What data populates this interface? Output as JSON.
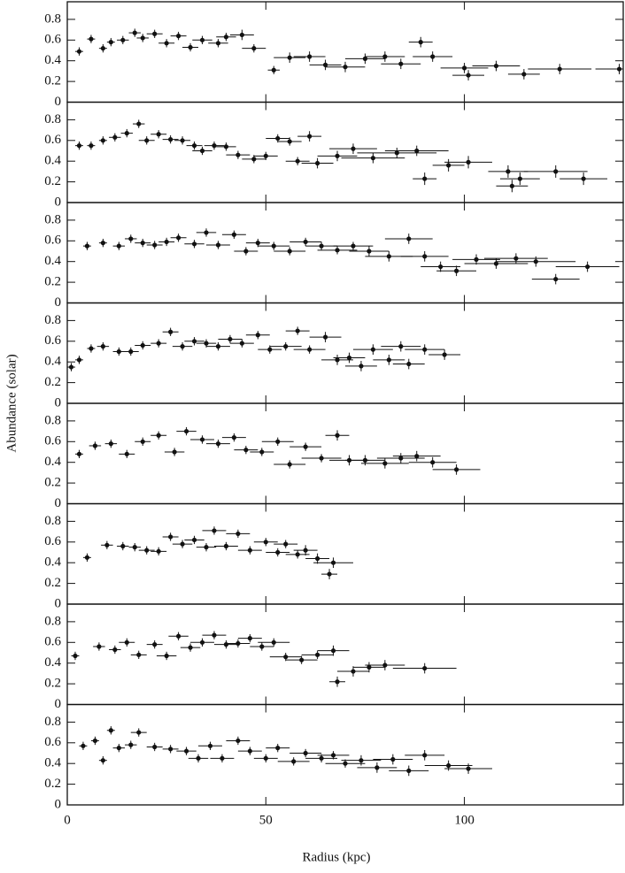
{
  "chart_data": [
    {
      "type": "scatter",
      "color": "#111111",
      "xlim": [
        0,
        140
      ],
      "ylim": [
        0,
        0.97
      ],
      "xticks": [
        0,
        50,
        100
      ],
      "yticks": [
        0,
        0.2,
        0.4,
        0.6,
        0.8
      ],
      "x": [
        3,
        6,
        9,
        11,
        14,
        17,
        19,
        22,
        25,
        28,
        31,
        34,
        38,
        40,
        44,
        47,
        52,
        56,
        61,
        65,
        70,
        75,
        80,
        84,
        89,
        92,
        100,
        101,
        108,
        115,
        124,
        139
      ],
      "values": [
        0.49,
        0.61,
        0.52,
        0.58,
        0.6,
        0.67,
        0.62,
        0.66,
        0.57,
        0.64,
        0.53,
        0.6,
        0.57,
        0.63,
        0.65,
        0.52,
        0.31,
        0.43,
        0.44,
        0.36,
        0.34,
        0.42,
        0.44,
        0.37,
        0.58,
        0.44,
        0.33,
        0.26,
        0.35,
        0.27,
        0.32,
        0.32
      ],
      "xerr": [
        1,
        1,
        1,
        1,
        1.5,
        1.5,
        1.5,
        2,
        2,
        2,
        2,
        2.5,
        2.5,
        2.5,
        3,
        3,
        1.5,
        4,
        4,
        4,
        5,
        5,
        5,
        5,
        3,
        5,
        6,
        4,
        6,
        4,
        8,
        6
      ],
      "yerr": [
        0.04,
        0.04,
        0.04,
        0.04,
        0.04,
        0.04,
        0.04,
        0.04,
        0.04,
        0.04,
        0.04,
        0.04,
        0.04,
        0.04,
        0.05,
        0.04,
        0.04,
        0.05,
        0.05,
        0.05,
        0.05,
        0.05,
        0.05,
        0.05,
        0.05,
        0.05,
        0.05,
        0.05,
        0.05,
        0.05,
        0.05,
        0.05
      ]
    },
    {
      "type": "scatter",
      "color": "#111111",
      "xlim": [
        0,
        140
      ],
      "ylim": [
        0,
        0.97
      ],
      "xticks": [
        0,
        50,
        100
      ],
      "yticks": [
        0,
        0.2,
        0.4,
        0.6,
        0.8
      ],
      "x": [
        3,
        6,
        9,
        12,
        15,
        18,
        20,
        23,
        26,
        29,
        32,
        34,
        37,
        40,
        43,
        47,
        50,
        53,
        56,
        58,
        61,
        63,
        68,
        72,
        77,
        83,
        88,
        90,
        96,
        101,
        111,
        112,
        114,
        123,
        130
      ],
      "values": [
        0.55,
        0.55,
        0.6,
        0.63,
        0.67,
        0.76,
        0.6,
        0.66,
        0.61,
        0.6,
        0.55,
        0.5,
        0.55,
        0.54,
        0.46,
        0.42,
        0.45,
        0.62,
        0.59,
        0.4,
        0.64,
        0.38,
        0.45,
        0.52,
        0.43,
        0.48,
        0.5,
        0.23,
        0.36,
        0.39,
        0.3,
        0.16,
        0.23,
        0.3,
        0.23
      ],
      "xerr": [
        1,
        1,
        1,
        1.5,
        1.5,
        1.5,
        2,
        2,
        2,
        2,
        2,
        2.5,
        2.5,
        2.5,
        3,
        3,
        3,
        3,
        3,
        3,
        3,
        4,
        5,
        6,
        8,
        10,
        8,
        3,
        4,
        6,
        5,
        4,
        5,
        8,
        6
      ],
      "yerr": [
        0.04,
        0.04,
        0.04,
        0.04,
        0.04,
        0.04,
        0.04,
        0.04,
        0.04,
        0.04,
        0.04,
        0.04,
        0.04,
        0.04,
        0.04,
        0.04,
        0.04,
        0.04,
        0.04,
        0.04,
        0.05,
        0.05,
        0.05,
        0.05,
        0.05,
        0.05,
        0.05,
        0.06,
        0.06,
        0.06,
        0.06,
        0.06,
        0.06,
        0.06,
        0.06
      ]
    },
    {
      "type": "scatter",
      "color": "#111111",
      "xlim": [
        0,
        140
      ],
      "ylim": [
        0,
        0.97
      ],
      "xticks": [
        0,
        50,
        100
      ],
      "yticks": [
        0,
        0.2,
        0.4,
        0.6,
        0.8
      ],
      "x": [
        5,
        9,
        13,
        16,
        19,
        22,
        25,
        28,
        32,
        35,
        38,
        42,
        45,
        48,
        52,
        56,
        60,
        64,
        68,
        72,
        76,
        81,
        86,
        90,
        94,
        98,
        103,
        108,
        113,
        118,
        123,
        131
      ],
      "values": [
        0.55,
        0.58,
        0.55,
        0.62,
        0.58,
        0.56,
        0.59,
        0.63,
        0.57,
        0.68,
        0.56,
        0.66,
        0.5,
        0.58,
        0.55,
        0.5,
        0.59,
        0.55,
        0.51,
        0.55,
        0.5,
        0.45,
        0.62,
        0.45,
        0.35,
        0.31,
        0.42,
        0.38,
        0.43,
        0.4,
        0.23,
        0.35
      ],
      "xerr": [
        1,
        1,
        1.5,
        1.5,
        2,
        2,
        2,
        2,
        2.5,
        2.5,
        3,
        3,
        3,
        3,
        4,
        4,
        4,
        4,
        5,
        5,
        5,
        6,
        6,
        6,
        5,
        5,
        6,
        8,
        8,
        10,
        6,
        8
      ],
      "yerr": [
        0.04,
        0.04,
        0.04,
        0.04,
        0.04,
        0.04,
        0.04,
        0.04,
        0.04,
        0.04,
        0.04,
        0.04,
        0.04,
        0.04,
        0.04,
        0.04,
        0.04,
        0.04,
        0.04,
        0.04,
        0.05,
        0.05,
        0.05,
        0.05,
        0.05,
        0.05,
        0.05,
        0.05,
        0.05,
        0.05,
        0.05,
        0.05
      ]
    },
    {
      "type": "scatter",
      "color": "#111111",
      "xlim": [
        0,
        140
      ],
      "ylim": [
        0,
        0.97
      ],
      "xticks": [
        0,
        50,
        100
      ],
      "yticks": [
        0,
        0.2,
        0.4,
        0.6,
        0.8
      ],
      "ylabel": "Abundance (solar)",
      "x": [
        1,
        3,
        6,
        9,
        13,
        16,
        19,
        23,
        26,
        29,
        32,
        35,
        38,
        41,
        44,
        48,
        51,
        55,
        58,
        61,
        65,
        68,
        71,
        74,
        77,
        81,
        84,
        86,
        90,
        95
      ],
      "values": [
        0.35,
        0.42,
        0.53,
        0.55,
        0.5,
        0.5,
        0.56,
        0.58,
        0.69,
        0.55,
        0.6,
        0.58,
        0.55,
        0.62,
        0.58,
        0.66,
        0.52,
        0.55,
        0.7,
        0.52,
        0.64,
        0.42,
        0.44,
        0.36,
        0.52,
        0.42,
        0.55,
        0.38,
        0.52,
        0.47
      ],
      "xerr": [
        1,
        1,
        1,
        1.5,
        1.5,
        2,
        2,
        2,
        2,
        2.5,
        2.5,
        2.5,
        3,
        3,
        3,
        3,
        3,
        4,
        3,
        4,
        4,
        4,
        4,
        4,
        5,
        4,
        5,
        4,
        5,
        4
      ],
      "yerr": [
        0.04,
        0.04,
        0.04,
        0.04,
        0.04,
        0.04,
        0.04,
        0.04,
        0.04,
        0.04,
        0.04,
        0.04,
        0.04,
        0.04,
        0.04,
        0.04,
        0.04,
        0.04,
        0.04,
        0.04,
        0.05,
        0.05,
        0.05,
        0.05,
        0.05,
        0.05,
        0.05,
        0.05,
        0.05,
        0.05
      ]
    },
    {
      "type": "scatter",
      "color": "#111111",
      "xlim": [
        0,
        140
      ],
      "ylim": [
        0,
        0.97
      ],
      "xticks": [
        0,
        50,
        100
      ],
      "yticks": [
        0,
        0.2,
        0.4,
        0.6,
        0.8
      ],
      "x": [
        3,
        7,
        11,
        15,
        19,
        23,
        27,
        30,
        34,
        38,
        42,
        45,
        49,
        53,
        56,
        60,
        64,
        68,
        71,
        75,
        80,
        84,
        88,
        92,
        98
      ],
      "values": [
        0.48,
        0.56,
        0.58,
        0.48,
        0.6,
        0.66,
        0.5,
        0.7,
        0.62,
        0.58,
        0.64,
        0.52,
        0.5,
        0.6,
        0.38,
        0.55,
        0.44,
        0.66,
        0.42,
        0.42,
        0.39,
        0.44,
        0.46,
        0.4,
        0.33
      ],
      "xerr": [
        1,
        1.5,
        1.5,
        2,
        2,
        2,
        2.5,
        2.5,
        3,
        3,
        3,
        3,
        3,
        4,
        4,
        4,
        5,
        3,
        5,
        5,
        6,
        6,
        6,
        6,
        6
      ],
      "yerr": [
        0.04,
        0.04,
        0.04,
        0.04,
        0.04,
        0.04,
        0.04,
        0.04,
        0.04,
        0.04,
        0.04,
        0.04,
        0.04,
        0.04,
        0.04,
        0.04,
        0.04,
        0.05,
        0.05,
        0.05,
        0.05,
        0.05,
        0.05,
        0.05,
        0.05
      ]
    },
    {
      "type": "scatter",
      "color": "#111111",
      "xlim": [
        0,
        140
      ],
      "ylim": [
        0,
        0.97
      ],
      "xticks": [
        0,
        50,
        100
      ],
      "yticks": [
        0,
        0.2,
        0.4,
        0.6,
        0.8
      ],
      "x": [
        5,
        10,
        14,
        17,
        20,
        23,
        26,
        29,
        32,
        35,
        37,
        40,
        43,
        46,
        50,
        53,
        55,
        58,
        60,
        63,
        66,
        67
      ],
      "values": [
        0.45,
        0.57,
        0.56,
        0.55,
        0.52,
        0.51,
        0.65,
        0.58,
        0.62,
        0.55,
        0.71,
        0.56,
        0.68,
        0.52,
        0.6,
        0.5,
        0.58,
        0.48,
        0.52,
        0.44,
        0.29,
        0.4
      ],
      "xerr": [
        1,
        1.5,
        1.5,
        1.5,
        2,
        2,
        2,
        2.5,
        2.5,
        2.5,
        3,
        3,
        3,
        3,
        3,
        3,
        3,
        3,
        3,
        3,
        2,
        5
      ],
      "yerr": [
        0.04,
        0.04,
        0.04,
        0.04,
        0.04,
        0.04,
        0.04,
        0.04,
        0.04,
        0.04,
        0.04,
        0.04,
        0.04,
        0.04,
        0.04,
        0.04,
        0.04,
        0.04,
        0.05,
        0.05,
        0.05,
        0.05
      ]
    },
    {
      "type": "scatter",
      "color": "#111111",
      "xlim": [
        0,
        140
      ],
      "ylim": [
        0,
        0.97
      ],
      "xticks": [
        0,
        50,
        100
      ],
      "yticks": [
        0,
        0.2,
        0.4,
        0.6,
        0.8
      ],
      "x": [
        2,
        8,
        12,
        15,
        18,
        22,
        25,
        28,
        31,
        34,
        37,
        40,
        43,
        46,
        49,
        52,
        55,
        59,
        63,
        67,
        68,
        72,
        76,
        80,
        90
      ],
      "values": [
        0.47,
        0.56,
        0.53,
        0.6,
        0.48,
        0.58,
        0.47,
        0.66,
        0.55,
        0.6,
        0.67,
        0.58,
        0.59,
        0.64,
        0.56,
        0.6,
        0.46,
        0.43,
        0.48,
        0.52,
        0.22,
        0.32,
        0.36,
        0.38,
        0.35
      ],
      "xerr": [
        1,
        1.5,
        1.5,
        2,
        2,
        2,
        2.5,
        2.5,
        2.5,
        3,
        3,
        3,
        3,
        3,
        3,
        4,
        4,
        4,
        4,
        4,
        2,
        4,
        4,
        5,
        8
      ],
      "yerr": [
        0.04,
        0.04,
        0.04,
        0.04,
        0.04,
        0.04,
        0.04,
        0.04,
        0.04,
        0.04,
        0.04,
        0.04,
        0.04,
        0.04,
        0.04,
        0.04,
        0.04,
        0.04,
        0.04,
        0.05,
        0.05,
        0.05,
        0.05,
        0.05,
        0.05
      ]
    },
    {
      "type": "scatter",
      "color": "#111111",
      "xlim": [
        0,
        140
      ],
      "ylim": [
        0,
        0.97
      ],
      "xticks": [
        0,
        50,
        100
      ],
      "yticks": [
        0,
        0.2,
        0.4,
        0.6,
        0.8
      ],
      "xlabel": "Radius (kpc)",
      "x": [
        4,
        7,
        9,
        11,
        13,
        16,
        18,
        22,
        26,
        30,
        33,
        36,
        39,
        43,
        46,
        50,
        53,
        57,
        60,
        64,
        67,
        70,
        74,
        78,
        82,
        86,
        90,
        96,
        101
      ],
      "values": [
        0.57,
        0.62,
        0.43,
        0.72,
        0.55,
        0.58,
        0.7,
        0.56,
        0.54,
        0.52,
        0.45,
        0.57,
        0.45,
        0.62,
        0.52,
        0.45,
        0.55,
        0.42,
        0.5,
        0.45,
        0.48,
        0.4,
        0.43,
        0.36,
        0.44,
        0.33,
        0.48,
        0.38,
        0.35
      ],
      "xerr": [
        1,
        1,
        1,
        1,
        1.5,
        1.5,
        2,
        2,
        2,
        2.5,
        2.5,
        3,
        3,
        3,
        3,
        3,
        3,
        4,
        4,
        4,
        4,
        5,
        5,
        5,
        5,
        5,
        5,
        6,
        6
      ],
      "yerr": [
        0.04,
        0.04,
        0.04,
        0.04,
        0.04,
        0.04,
        0.04,
        0.04,
        0.04,
        0.04,
        0.04,
        0.04,
        0.04,
        0.04,
        0.04,
        0.04,
        0.04,
        0.04,
        0.04,
        0.04,
        0.04,
        0.04,
        0.05,
        0.05,
        0.05,
        0.05,
        0.05,
        0.05,
        0.05
      ]
    }
  ]
}
